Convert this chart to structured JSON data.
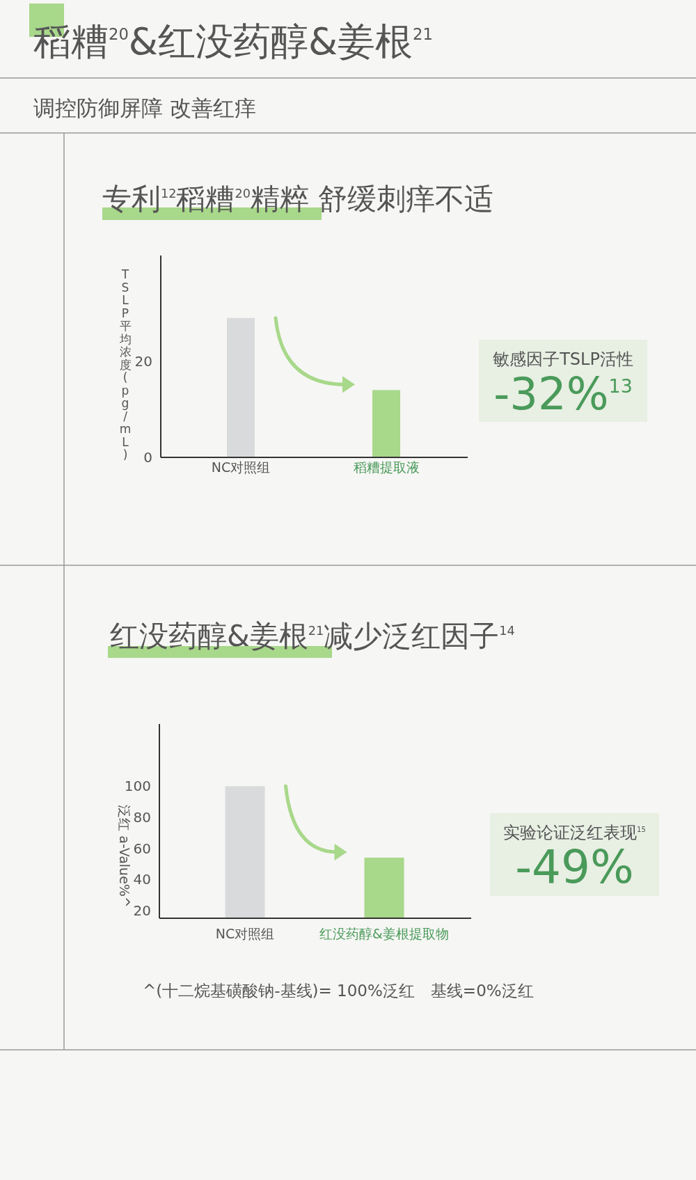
{
  "chart_data": [
    {
      "type": "bar",
      "title": "稻糟$^{20}$&红没药醇&姜根$^{21}$",
      "subtitle": "调控防御屏障 改善红痒",
      "ylabel": "TSLP 平均浓度(pg/mL)",
      "categories": [
        "NC对照组",
        "稻糟提取液"
      ],
      "values": [
        29,
        14
      ],
      "colors": [
        "#d9dadc",
        "#a8d88a"
      ],
      "ylim": [
        0,
        42
      ],
      "yticks": [
        0,
        20
      ],
      "annotations": [
        "专利$^{12}$稻糟$^{20}$精粹 舒缓刺痒不适",
        "敏感因子TSLP活性",
        "-32%$^{13}$"
      ]
    },
    {
      "type": "bar",
      "title": "红没药醇&姜根$^{21}$减少泛红因子$^{14}$",
      "ylabel": "泛红 a-Value%^",
      "categories": [
        "NC对照组",
        "红没药醇&姜根提取物"
      ],
      "values": [
        100,
        54
      ],
      "colors": [
        "#d9dadc",
        "#a8d88a"
      ],
      "ylim": [
        15,
        140
      ],
      "yticks": [
        20,
        40,
        60,
        80,
        100
      ],
      "annotations": [
        "实验论证泛红表现$^{15}$",
        "-49%",
        "^(十二烷基磺酸钠-基线)= 100%泛红　基线=0%泛红"
      ]
    }
  ]
}
